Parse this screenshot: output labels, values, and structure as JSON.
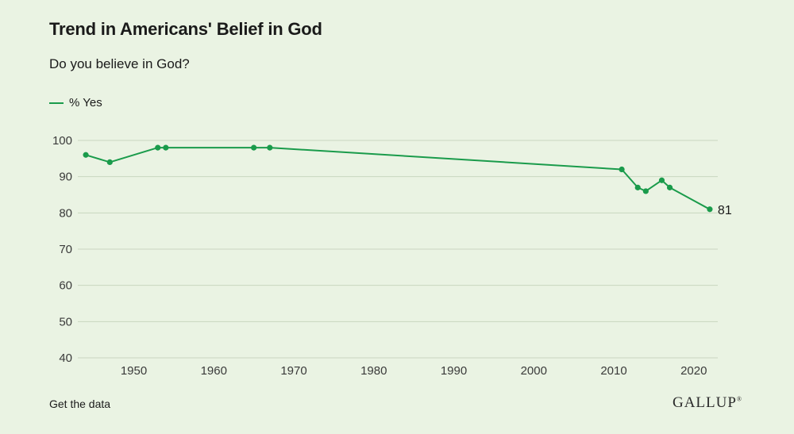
{
  "header": {
    "title": "Trend in Americans' Belief in God",
    "subtitle": "Do you believe in God?"
  },
  "footer": {
    "link_label": "Get the data",
    "brand": "GALLUP",
    "brand_mark": "®"
  },
  "colors": {
    "series": "#1a9b4b",
    "grid": "#c9d6c0",
    "background": "#eaf3e3"
  },
  "chart_data": {
    "type": "line",
    "title": "Trend in Americans' Belief in God",
    "subtitle": "Do you believe in God?",
    "xlabel": "",
    "ylabel": "",
    "xlim": [
      1943,
      2023
    ],
    "ylim": [
      40,
      100
    ],
    "xticks": [
      1950,
      1960,
      1970,
      1980,
      1990,
      2000,
      2010,
      2020
    ],
    "yticks": [
      40,
      50,
      60,
      70,
      80,
      90,
      100
    ],
    "grid": true,
    "legend": "top-left",
    "series": [
      {
        "name": "% Yes",
        "x": [
          1944,
          1947,
          1953,
          1954,
          1965,
          1967,
          2011,
          2013,
          2014,
          2016,
          2017,
          2022
        ],
        "values": [
          96,
          94,
          98,
          98,
          98,
          98,
          92,
          87,
          86,
          89,
          87,
          81
        ]
      }
    ],
    "annotations": [
      {
        "series": 0,
        "point": "last",
        "text": "81"
      }
    ]
  }
}
